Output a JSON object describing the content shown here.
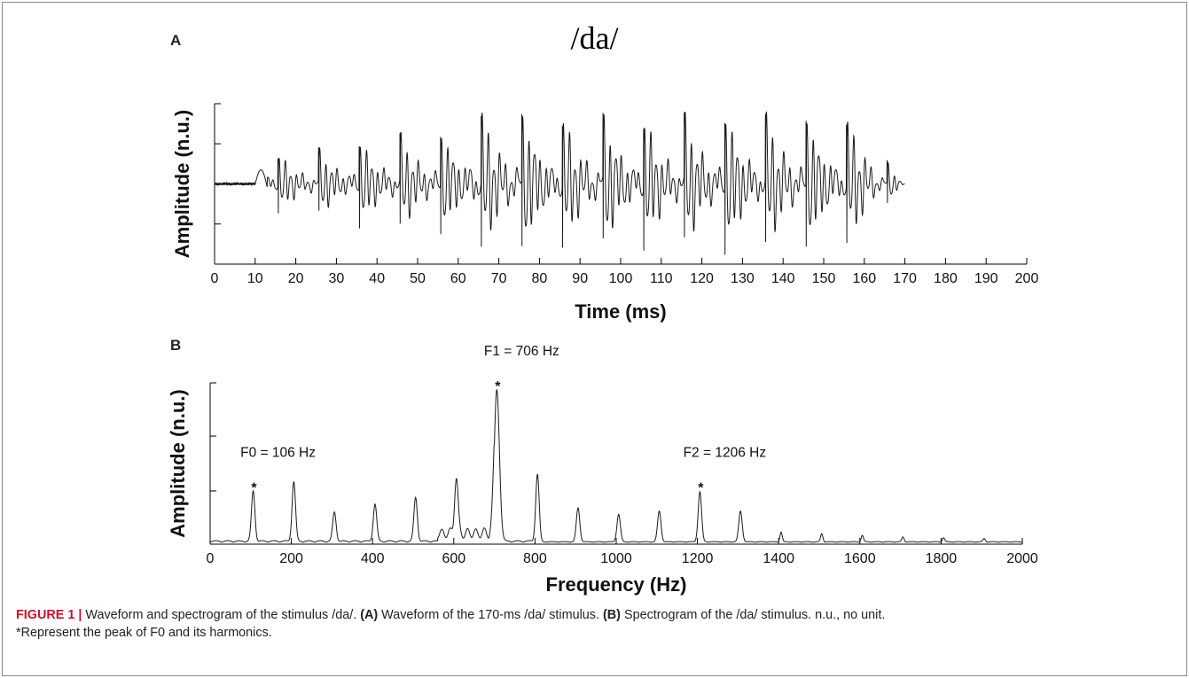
{
  "figure": {
    "panel_a_label": "A",
    "panel_b_label": "B",
    "stimulus_title": "/da/"
  },
  "caption": {
    "figure_label": "FIGURE 1 |",
    "text_1": " Waveform and spectrogram of the stimulus /da/. ",
    "bold_a": "(A)",
    "text_2": " Waveform of the 170-ms /da/ stimulus. ",
    "bold_b": "(B)",
    "text_3": " Spectrogram of the /da/ stimulus. n.u., no unit.",
    "line_2": "*Represent the peak of F0 and its harmonics."
  },
  "chart_data": [
    {
      "type": "line",
      "panel": "A",
      "title": "/da/",
      "xlabel": "Time (ms)",
      "ylabel": "Amplitude (n.u.)",
      "xlim": [
        0,
        200
      ],
      "x_ticks": [
        0,
        10,
        20,
        30,
        40,
        50,
        60,
        70,
        80,
        90,
        100,
        110,
        120,
        130,
        140,
        150,
        160,
        170,
        180,
        190,
        200
      ],
      "ylim": [
        -1,
        1
      ],
      "y_ticks": [
        -1,
        -0.5,
        0,
        0.5,
        1
      ],
      "y_tick_labels_shown": false,
      "signal": {
        "kind": "waveform",
        "duration_ms": 170,
        "onset_noise_until_ms": 10,
        "pitch_period_ms": 10,
        "first_pitch_pulse_ms": 15.6,
        "peak_amplitudes": [
          0.35,
          0.4,
          0.52,
          0.58,
          0.62,
          0.84,
          0.84,
          0.78,
          0.8,
          0.78,
          0.8,
          0.84,
          0.82,
          0.8,
          0.76,
          0.62,
          0.5
        ]
      }
    },
    {
      "type": "line",
      "panel": "B",
      "xlabel": "Frequency (Hz)",
      "ylabel": "Amplitude (n.u.)",
      "xlim": [
        0,
        2000
      ],
      "x_ticks": [
        0,
        200,
        400,
        600,
        800,
        1000,
        1200,
        1400,
        1600,
        1800,
        2000
      ],
      "ylim": [
        0,
        1
      ],
      "y_ticks": [
        0,
        0.33,
        0.67,
        1
      ],
      "y_tick_labels_shown": false,
      "peaks": [
        {
          "x": 106,
          "y": 0.31
        },
        {
          "x": 206,
          "y": 0.37
        },
        {
          "x": 306,
          "y": 0.18
        },
        {
          "x": 406,
          "y": 0.23
        },
        {
          "x": 506,
          "y": 0.27
        },
        {
          "x": 606,
          "y": 0.35
        },
        {
          "x": 706,
          "y": 0.94
        },
        {
          "x": 806,
          "y": 0.42
        },
        {
          "x": 906,
          "y": 0.21
        },
        {
          "x": 1006,
          "y": 0.17
        },
        {
          "x": 1106,
          "y": 0.19
        },
        {
          "x": 1206,
          "y": 0.31
        },
        {
          "x": 1306,
          "y": 0.19
        },
        {
          "x": 1406,
          "y": 0.06
        },
        {
          "x": 1506,
          "y": 0.05
        },
        {
          "x": 1606,
          "y": 0.04
        },
        {
          "x": 1706,
          "y": 0.03
        },
        {
          "x": 1806,
          "y": 0.025
        },
        {
          "x": 1906,
          "y": 0.02
        }
      ],
      "annotations": [
        {
          "label": "F0 = 106 Hz",
          "x": 106,
          "marker": "*"
        },
        {
          "label": "F1 = 706 Hz",
          "x": 706,
          "marker": "*"
        },
        {
          "label": "F2 = 1206 Hz",
          "x": 1206,
          "marker": "*"
        }
      ]
    }
  ]
}
